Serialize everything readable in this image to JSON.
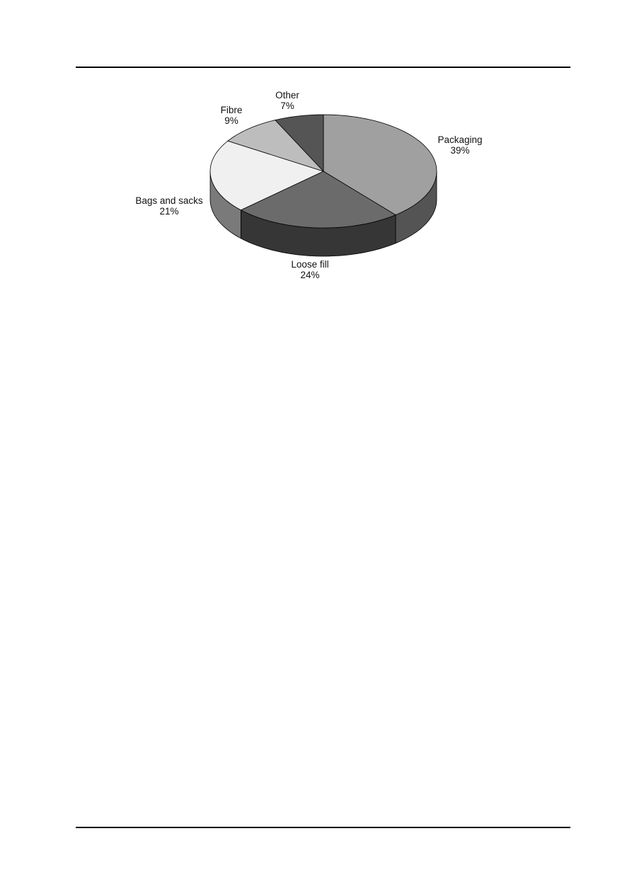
{
  "chart_data": {
    "type": "pie",
    "style": "3d",
    "start": "top, clockwise",
    "slices": [
      {
        "label": "Packaging",
        "value": 39,
        "value_label": "39%",
        "color": "#a0a0a0",
        "side_color": "#545454"
      },
      {
        "label": "Loose fill",
        "value": 24,
        "value_label": "24%",
        "color": "#6b6b6b",
        "side_color": "#363636"
      },
      {
        "label": "Bags and sacks",
        "value": 21,
        "value_label": "21%",
        "color": "#f0f0f0",
        "side_color": "#7a7a7a"
      },
      {
        "label": "Fibre",
        "value": 9,
        "value_label": "9%",
        "color": "#bdbdbd",
        "side_color": "#8a8a8a"
      },
      {
        "label": "Other",
        "value": 7,
        "value_label": "7%",
        "color": "#555555",
        "side_color": "#333333"
      }
    ]
  }
}
